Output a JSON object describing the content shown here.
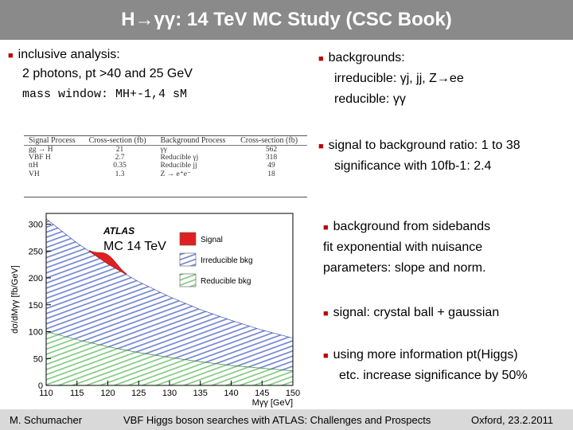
{
  "title": "H→γγ: 14 TeV MC Study (CSC Book)",
  "left": {
    "line1": "inclusive analysis:",
    "line2": "2 photons, pt >40 and 25 GeV",
    "line3": "mass window: MH+-1,4 sM"
  },
  "right": {
    "bg_head": "backgrounds:",
    "bg_irr": "irreducible: γj, jj, Z→ee",
    "bg_red": "reducible:  γγ",
    "ratio": "signal to background ratio:  1 to 38",
    "signif": "significance with 10fb-1:      2.4",
    "sideband1": "background from sidebands",
    "sideband2": "fit exponential with nuisance",
    "sideband3": "parameters: slope and norm.",
    "signal_model": "signal: crystal ball + gaussian",
    "more1": "using more information pt(Higgs)",
    "more2": "etc. increase significance by 50%"
  },
  "xs_table": {
    "headers": [
      "Signal Process",
      "Cross-section (fb)",
      "Background Process",
      "Cross-section (fb)"
    ],
    "rows": [
      [
        "gg → H",
        "21",
        "γγ",
        "562"
      ],
      [
        "VBF H",
        "2.7",
        "Reducible γj",
        "318"
      ],
      [
        "ttH",
        "0.35",
        "Reducible jj",
        "49"
      ],
      [
        "VH",
        "1.3",
        "Z → e⁺e⁻",
        "18"
      ]
    ]
  },
  "plot": {
    "atlas": "ATLAS",
    "mc_label": "MC 14 TeV",
    "legend": [
      "Signal",
      "Irreducible bkg",
      "Reducible bkg"
    ],
    "colors": {
      "signal": "#e02020",
      "irreducible": "#6b7fd0",
      "reducible": "#7cc77c"
    }
  },
  "chart_data": {
    "type": "area",
    "xlabel": "Mγγ [GeV]",
    "ylabel": "dσ/dMγγ [fb/GeV]",
    "xlim": [
      110,
      150
    ],
    "ylim": [
      0,
      320
    ],
    "xticks": [
      110,
      115,
      120,
      125,
      130,
      135,
      140,
      145,
      150
    ],
    "yticks": [
      0,
      50,
      100,
      150,
      200,
      250,
      300
    ],
    "x": [
      110,
      115,
      120,
      125,
      130,
      135,
      140,
      145,
      150
    ],
    "series": [
      {
        "name": "Reducible bkg",
        "values": [
          100,
          85,
          72,
          61,
          52,
          44,
          37,
          32,
          27
        ]
      },
      {
        "name": "Irreducible bkg",
        "values": [
          310,
          265,
          226,
          193,
          165,
          141,
          121,
          103,
          88
        ]
      },
      {
        "name": "Signal",
        "peak_x": 120,
        "peak_height": 17
      }
    ]
  },
  "footer": {
    "left": "M. Schumacher",
    "center": "VBF Higgs boson searches with ATLAS: Challenges and Prospects",
    "right": "Oxford, 23.2.2011"
  }
}
